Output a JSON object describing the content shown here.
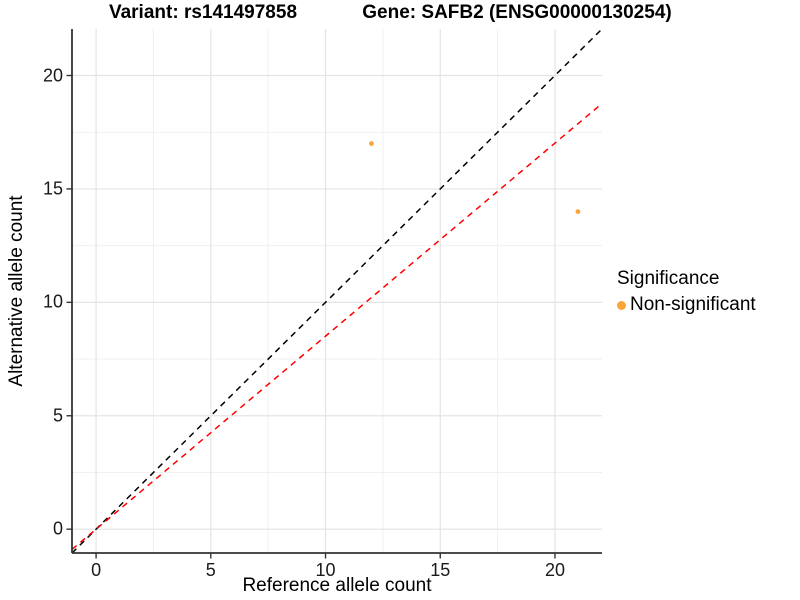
{
  "chart_data": {
    "type": "scatter",
    "title_left": "Variant: rs141497858",
    "title_right": "Gene: SAFB2 (ENSG00000130254)",
    "xlabel": "Reference allele count",
    "ylabel": "Alternative allele count",
    "xlim": [
      -1.05,
      22.05
    ],
    "ylim": [
      -1.05,
      22.05
    ],
    "x_major_ticks": [
      0,
      5,
      10,
      15,
      20
    ],
    "y_major_ticks": [
      0,
      5,
      10,
      15,
      20
    ],
    "x_minor_ticks": [
      2.5,
      7.5,
      12.5,
      17.5
    ],
    "y_minor_ticks": [
      2.5,
      7.5,
      12.5,
      17.5
    ],
    "grid": "major-and-minor, white background",
    "points": [
      {
        "x": 12,
        "y": 17,
        "series": "Non-significant"
      },
      {
        "x": 21,
        "y": 14,
        "series": "Non-significant"
      }
    ],
    "point_color": "#FAA43A",
    "point_radius": 2.4,
    "lines": [
      {
        "name": "identity",
        "slope": 1,
        "intercept": 0,
        "color": "#000000",
        "style": "dashed"
      },
      {
        "name": "alt-vs-ref-fit",
        "slope": 0.851,
        "intercept": 0,
        "color": "#FF0000",
        "style": "dashed"
      }
    ],
    "legend": {
      "position": "right",
      "title": "Significance",
      "items": [
        {
          "label": "Non-significant",
          "color": "#FAA43A"
        }
      ]
    },
    "colors": {
      "major_grid": "#E4E4E4",
      "minor_grid": "#F0F0F0",
      "axis_line": "#333333"
    }
  }
}
